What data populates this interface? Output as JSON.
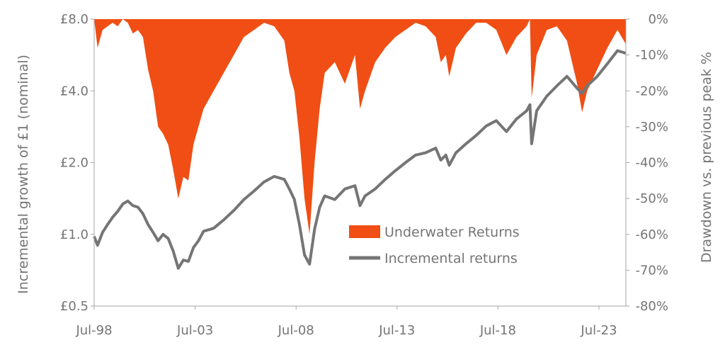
{
  "chart_data": {
    "type": "line",
    "xlabel": "",
    "ylabel": "Incremental growth of £1 (nominal)",
    "y2label": "Drawdown vs. previous peak %",
    "x_ticks": [
      "Jul-98",
      "Jul-03",
      "Jul-08",
      "Jul-13",
      "Jul-18",
      "Jul-23"
    ],
    "xlim": [
      "1998-07",
      "2024-11"
    ],
    "y_scale": "log2",
    "y_ticks": [
      "£0.5",
      "£1.0",
      "£2.0",
      "£4.0",
      "£8.0"
    ],
    "y_tick_values": [
      0.5,
      1.0,
      2.0,
      4.0,
      8.0
    ],
    "ylim": [
      0.5,
      8.0
    ],
    "y2_ticks": [
      "0%",
      "-10%",
      "-20%",
      "-30%",
      "-40%",
      "-50%",
      "-60%",
      "-70%",
      "-80%"
    ],
    "y2_tick_values": [
      0,
      -10,
      -20,
      -30,
      -40,
      -50,
      -60,
      -70,
      -80
    ],
    "y2lim": [
      -80,
      0
    ],
    "legend_position": "center",
    "grid": false,
    "series": [
      {
        "name": "Underwater Returns",
        "type": "area",
        "axis": "right",
        "color": "#F04E14",
        "x": [
          "1998-07",
          "1998-09",
          "1998-12",
          "1999-03",
          "1999-06",
          "1999-09",
          "1999-12",
          "2000-03",
          "2000-06",
          "2000-09",
          "2000-12",
          "2001-03",
          "2001-06",
          "2001-09",
          "2001-12",
          "2002-03",
          "2002-06",
          "2002-09",
          "2002-12",
          "2003-03",
          "2003-06",
          "2003-09",
          "2003-12",
          "2004-06",
          "2004-12",
          "2005-06",
          "2005-12",
          "2006-06",
          "2006-12",
          "2007-06",
          "2007-12",
          "2008-03",
          "2008-06",
          "2008-09",
          "2008-12",
          "2009-03",
          "2009-06",
          "2009-09",
          "2009-12",
          "2010-06",
          "2010-12",
          "2011-06",
          "2011-09",
          "2011-12",
          "2012-06",
          "2012-12",
          "2013-06",
          "2013-12",
          "2014-06",
          "2014-12",
          "2015-06",
          "2015-09",
          "2015-12",
          "2016-02",
          "2016-06",
          "2016-12",
          "2017-06",
          "2017-12",
          "2018-06",
          "2018-12",
          "2019-06",
          "2019-12",
          "2020-02",
          "2020-03",
          "2020-06",
          "2020-12",
          "2021-06",
          "2021-12",
          "2022-06",
          "2022-09",
          "2022-12",
          "2023-06",
          "2023-12",
          "2024-06",
          "2024-11"
        ],
        "values": [
          0,
          -8,
          -3,
          -2,
          -1,
          -2,
          0,
          -1,
          -4,
          -3,
          -5,
          -14,
          -20,
          -30,
          -32,
          -35,
          -42,
          -50,
          -44,
          -45,
          -35,
          -30,
          -25,
          -20,
          -15,
          -10,
          -5,
          -3,
          -1,
          -2,
          -6,
          -15,
          -20,
          -33,
          -50,
          -60,
          -40,
          -25,
          -15,
          -12,
          -18,
          -10,
          -25,
          -20,
          -12,
          -8,
          -5,
          -3,
          -1,
          -2,
          -5,
          -12,
          -10,
          -16,
          -8,
          -4,
          -1,
          -1,
          -3,
          -10,
          -5,
          -2,
          0,
          -22,
          -10,
          -3,
          -2,
          -6,
          -18,
          -26,
          -20,
          -14,
          -8,
          -3,
          -7
        ]
      },
      {
        "name": "Incremental returns",
        "type": "line",
        "axis": "left",
        "color": "#757575",
        "x": [
          "1998-07",
          "1998-09",
          "1998-12",
          "1999-03",
          "1999-06",
          "1999-09",
          "1999-12",
          "2000-03",
          "2000-06",
          "2000-09",
          "2000-12",
          "2001-03",
          "2001-06",
          "2001-09",
          "2001-12",
          "2002-03",
          "2002-06",
          "2002-09",
          "2002-12",
          "2003-03",
          "2003-06",
          "2003-09",
          "2003-12",
          "2004-06",
          "2004-12",
          "2005-06",
          "2005-12",
          "2006-06",
          "2006-12",
          "2007-06",
          "2007-12",
          "2008-03",
          "2008-06",
          "2008-09",
          "2008-12",
          "2009-03",
          "2009-06",
          "2009-09",
          "2009-12",
          "2010-06",
          "2010-12",
          "2011-06",
          "2011-09",
          "2011-12",
          "2012-06",
          "2012-12",
          "2013-06",
          "2013-12",
          "2014-06",
          "2014-12",
          "2015-06",
          "2015-09",
          "2015-12",
          "2016-02",
          "2016-06",
          "2016-12",
          "2017-06",
          "2017-12",
          "2018-06",
          "2018-12",
          "2019-06",
          "2019-12",
          "2020-02",
          "2020-03",
          "2020-06",
          "2020-12",
          "2021-06",
          "2021-12",
          "2022-06",
          "2022-09",
          "2022-12",
          "2023-06",
          "2023-12",
          "2024-06",
          "2024-11"
        ],
        "values": [
          0.98,
          0.9,
          1.02,
          1.1,
          1.18,
          1.25,
          1.34,
          1.38,
          1.32,
          1.3,
          1.22,
          1.1,
          1.02,
          0.94,
          1.0,
          0.96,
          0.85,
          0.72,
          0.78,
          0.77,
          0.88,
          0.94,
          1.03,
          1.06,
          1.15,
          1.26,
          1.4,
          1.52,
          1.66,
          1.75,
          1.7,
          1.55,
          1.4,
          1.1,
          0.82,
          0.75,
          1.05,
          1.3,
          1.45,
          1.4,
          1.55,
          1.6,
          1.32,
          1.45,
          1.55,
          1.7,
          1.85,
          2.0,
          2.15,
          2.2,
          2.3,
          2.05,
          2.15,
          1.95,
          2.2,
          2.4,
          2.6,
          2.85,
          3.0,
          2.7,
          3.05,
          3.3,
          3.5,
          2.4,
          3.3,
          3.8,
          4.2,
          4.6,
          4.1,
          3.9,
          4.2,
          4.6,
          5.2,
          5.9,
          5.75
        ]
      }
    ]
  }
}
